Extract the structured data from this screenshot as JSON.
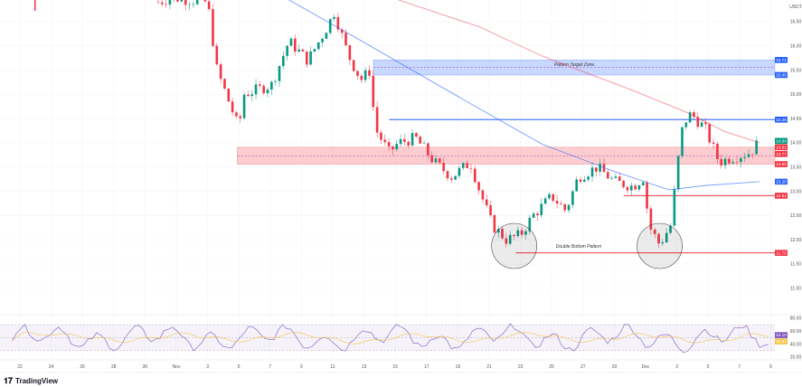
{
  "brand": "TradingView",
  "currency": "USDT",
  "chart_data": {
    "type": "candlestick",
    "time_unit": "days since Oct 22",
    "x_ticks": [
      {
        "t": 0,
        "label": "22"
      },
      {
        "t": 2,
        "label": "24"
      },
      {
        "t": 4,
        "label": "26"
      },
      {
        "t": 6,
        "label": "28"
      },
      {
        "t": 8,
        "label": "30"
      },
      {
        "t": 10,
        "label": "Nov"
      },
      {
        "t": 12,
        "label": "3"
      },
      {
        "t": 14,
        "label": "5"
      },
      {
        "t": 16,
        "label": "7"
      },
      {
        "t": 18,
        "label": "9"
      },
      {
        "t": 20,
        "label": "11"
      },
      {
        "t": 22,
        "label": "13"
      },
      {
        "t": 24,
        "label": "15"
      },
      {
        "t": 26,
        "label": "17"
      },
      {
        "t": 28,
        "label": "19"
      },
      {
        "t": 30,
        "label": "21"
      },
      {
        "t": 32,
        "label": "23"
      },
      {
        "t": 34,
        "label": "25"
      },
      {
        "t": 36,
        "label": "27"
      },
      {
        "t": 38,
        "label": "29"
      },
      {
        "t": 40,
        "label": "Dec"
      },
      {
        "t": 42,
        "label": "3"
      },
      {
        "t": 44,
        "label": "5"
      },
      {
        "t": 46,
        "label": "7"
      },
      {
        "t": 48,
        "label": "9"
      }
    ],
    "y_ticks": [
      "16.50",
      "16.00",
      "15.50",
      "15.00",
      "14.50",
      "14.00",
      "13.50",
      "13.00",
      "12.50",
      "12.00",
      "11.50",
      "11.00"
    ],
    "ylim": [
      10.7,
      17.0
    ],
    "price_path": [
      [
        8.84,
        16.9
      ],
      [
        9.7,
        17.0
      ],
      [
        12.0,
        16.9
      ],
      [
        12.6,
        15.5
      ],
      [
        14.0,
        14.3
      ],
      [
        14.3,
        15.0
      ],
      [
        16.1,
        15.2
      ],
      [
        17.2,
        16.1
      ],
      [
        18.4,
        15.7
      ],
      [
        19.5,
        16.3
      ],
      [
        20.1,
        16.7
      ],
      [
        21.0,
        15.8
      ],
      [
        21.8,
        15.3
      ],
      [
        22.4,
        15.5
      ],
      [
        22.7,
        14.3
      ],
      [
        23.6,
        13.8
      ],
      [
        24.2,
        14.0
      ],
      [
        25.3,
        14.1
      ],
      [
        26.5,
        13.6
      ],
      [
        27.6,
        13.3
      ],
      [
        28.8,
        13.6
      ],
      [
        29.4,
        13.0
      ],
      [
        30.2,
        12.3
      ],
      [
        31.1,
        12.0
      ],
      [
        32.0,
        12.1
      ],
      [
        32.8,
        12.5
      ],
      [
        34.0,
        12.9
      ],
      [
        34.9,
        12.6
      ],
      [
        35.7,
        13.3
      ],
      [
        36.9,
        13.5
      ],
      [
        38.0,
        13.2
      ],
      [
        39.2,
        13.1
      ],
      [
        39.9,
        13.3
      ],
      [
        40.2,
        12.3
      ],
      [
        40.9,
        11.9
      ],
      [
        41.6,
        12.3
      ],
      [
        42.1,
        13.7
      ],
      [
        42.4,
        14.4
      ],
      [
        42.9,
        14.6
      ],
      [
        43.8,
        14.3
      ],
      [
        44.7,
        13.6
      ],
      [
        45.5,
        13.7
      ],
      [
        46.7,
        13.8
      ],
      [
        47.3,
        14.04
      ]
    ],
    "ma_red": [
      [
        24.2,
        16.95
      ],
      [
        29.4,
        16.39
      ],
      [
        33.4,
        15.79
      ],
      [
        39.2,
        15.08
      ],
      [
        42.7,
        14.62
      ],
      [
        45.0,
        14.24
      ],
      [
        47.3,
        14.0
      ]
    ],
    "ma_blue": [
      [
        17.2,
        16.95
      ],
      [
        21.8,
        16.11
      ],
      [
        25.3,
        15.46
      ],
      [
        28.8,
        14.81
      ],
      [
        33.4,
        13.97
      ],
      [
        38.0,
        13.41
      ],
      [
        41.5,
        13.03
      ],
      [
        43.8,
        13.12
      ],
      [
        47.3,
        13.2
      ]
    ],
    "zones": [
      {
        "name": "Pattern Target Zone",
        "from": 15.4,
        "to": 15.71,
        "start_t": 22.6,
        "color": "#2962ff"
      },
      {
        "name": "",
        "from": 13.56,
        "to": 13.91,
        "start_t": 13.9,
        "color": "#f23645"
      }
    ],
    "lines": [
      {
        "price": 14.48,
        "start_t": 23.6,
        "color": "#2962ff"
      },
      {
        "price": 12.91,
        "start_t": 38.6,
        "color": "#f23645"
      },
      {
        "price": 11.73,
        "start_t": 31.7,
        "color": "#f23645"
      }
    ],
    "annotations": {
      "target_zone": "Pattern Target Zone",
      "double_bottom": "Double Bottom Pattern"
    },
    "price_labels": [
      {
        "v": "15.71",
        "c": "#2962ff"
      },
      {
        "v": "15.40",
        "c": "#2962ff"
      },
      {
        "v": "14.48",
        "c": "#2962ff"
      },
      {
        "v": "14.04",
        "c": "#089981"
      },
      {
        "v": "13.91",
        "c": "#f23645"
      },
      {
        "v": "13.77",
        "c": "#f23645"
      },
      {
        "v": "13.56",
        "c": "#f23645"
      },
      {
        "v": "13.20",
        "c": "#2962ff"
      },
      {
        "v": "12.91",
        "c": "#f23645"
      },
      {
        "v": "11.73",
        "c": "#f23645"
      }
    ],
    "rsi": {
      "ticks": [
        "80.00",
        "60.00",
        "40.00",
        "20.00"
      ],
      "value": "54.10",
      "ma_value": "50.81",
      "band": [
        30,
        70
      ]
    }
  }
}
